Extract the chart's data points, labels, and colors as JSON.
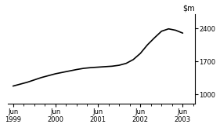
{
  "x_labels": [
    "Jun\n1999",
    "Jun\n2000",
    "Jun\n2001",
    "Jun\n2002",
    "Jun\n2003"
  ],
  "x_tick_years": [
    1999,
    2000,
    2001,
    2002,
    2003
  ],
  "yticks": [
    1000,
    1700,
    2400
  ],
  "ylim": [
    800,
    2700
  ],
  "line_color": "#000000",
  "line_width": 1.2,
  "background_color": "#ffffff",
  "data_x": [
    1999.417,
    1999.583,
    1999.75,
    1999.917,
    2000.083,
    2000.25,
    2000.417,
    2000.583,
    2000.75,
    2000.917,
    2001.083,
    2001.25,
    2001.417,
    2001.583,
    2001.75,
    2001.917,
    2002.083,
    2002.25,
    2002.417,
    2002.583,
    2002.75,
    2002.917,
    2003.083,
    2003.25,
    2003.417
  ],
  "data_y": [
    1180,
    1220,
    1260,
    1310,
    1360,
    1400,
    1440,
    1470,
    1500,
    1530,
    1555,
    1570,
    1580,
    1590,
    1600,
    1620,
    1660,
    1740,
    1870,
    2050,
    2200,
    2340,
    2390,
    2360,
    2300
  ]
}
